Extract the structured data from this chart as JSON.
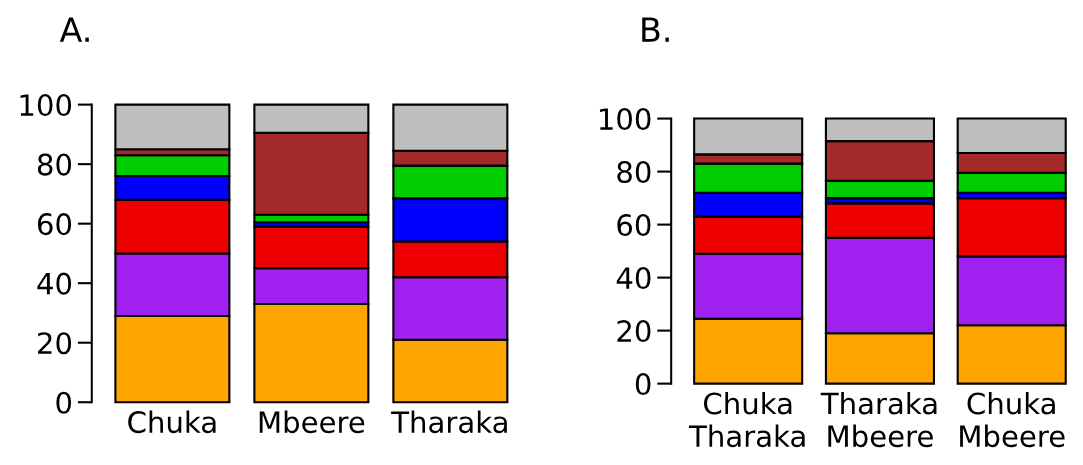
{
  "chart_data": [
    {
      "type": "bar",
      "title": "A.",
      "stacked": true,
      "categories": [
        "Chuka",
        "Mbeere",
        "Tharaka"
      ],
      "ylim": [
        0,
        100
      ],
      "yticks": [
        0,
        20,
        40,
        60,
        80,
        100
      ],
      "grid": false,
      "legend": false,
      "series": [
        {
          "color": "#ffa500",
          "values": [
            29,
            33,
            21
          ]
        },
        {
          "color": "#a020f0",
          "values": [
            21,
            12,
            21
          ]
        },
        {
          "color": "#ee0000",
          "values": [
            18,
            14,
            12
          ]
        },
        {
          "color": "#0000ff",
          "values": [
            8,
            1.5,
            14.5
          ]
        },
        {
          "color": "#00cd00",
          "values": [
            7,
            2.5,
            11
          ]
        },
        {
          "color": "#a52a2a",
          "values": [
            2,
            27.5,
            5
          ]
        },
        {
          "color": "#bebebe",
          "values": [
            15,
            9.5,
            15.5
          ]
        }
      ]
    },
    {
      "type": "bar",
      "title": "B.",
      "stacked": true,
      "categories": [
        "Chuka\nTharaka",
        "Tharaka\nMbeere",
        "Chuka\nMbeere"
      ],
      "ylim": [
        0,
        100
      ],
      "yticks": [
        0,
        20,
        40,
        60,
        80,
        100
      ],
      "grid": false,
      "legend": false,
      "series": [
        {
          "color": "#ffa500",
          "values": [
            24.5,
            19,
            22
          ]
        },
        {
          "color": "#a020f0",
          "values": [
            24.5,
            36,
            26
          ]
        },
        {
          "color": "#ee0000",
          "values": [
            14,
            13,
            22
          ]
        },
        {
          "color": "#0000ff",
          "values": [
            9,
            2,
            2
          ]
        },
        {
          "color": "#00cd00",
          "values": [
            11,
            6.5,
            7.5
          ]
        },
        {
          "color": "#a52a2a",
          "values": [
            3.5,
            15,
            7.5
          ]
        },
        {
          "color": "#bebebe",
          "values": [
            13.5,
            8.5,
            13
          ]
        }
      ]
    }
  ]
}
